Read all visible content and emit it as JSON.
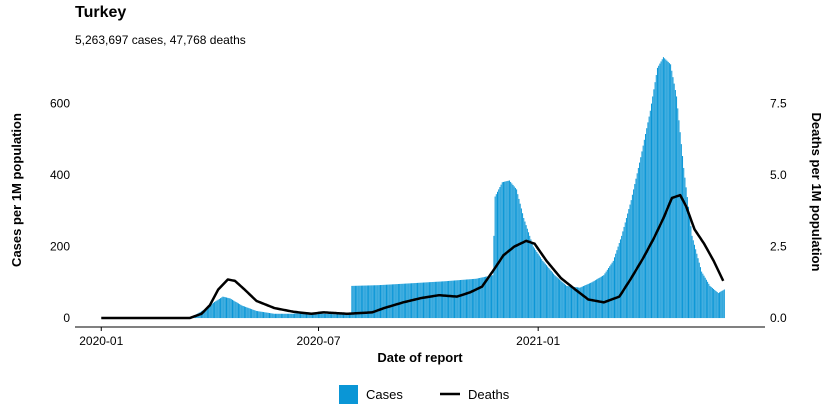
{
  "title": "Turkey",
  "subtitle": "5,263,697 cases, 47,768 deaths",
  "colors": {
    "cases": "#0a96d6",
    "deaths": "#000000"
  },
  "chart_data": {
    "type": "bar",
    "x_axis": {
      "label": "Date of report",
      "range": [
        "2019-12-10",
        "2021-07-10"
      ],
      "ticks": [
        {
          "date": "2020-01-01",
          "label": "2020-01"
        },
        {
          "date": "2020-07-01",
          "label": "2020-07"
        },
        {
          "date": "2021-01-01",
          "label": "2021-01"
        }
      ]
    },
    "y_left": {
      "label": "Cases per 1M population",
      "range": [
        -25,
        750
      ],
      "ticks": [
        0,
        200,
        400,
        600
      ]
    },
    "y_right": {
      "label": "Deaths per 1M population",
      "range": [
        -0.3125,
        9.375
      ],
      "ticks": [
        "0.0",
        "2.5",
        "5.0",
        "7.5"
      ]
    },
    "legend": {
      "position": "bottom"
    },
    "series": [
      {
        "name": "Cases",
        "type": "bar",
        "axis": "left",
        "points": [
          [
            "2020-01-01",
            0
          ],
          [
            "2020-03-10",
            0
          ],
          [
            "2020-03-18",
            5
          ],
          [
            "2020-03-28",
            25
          ],
          [
            "2020-04-05",
            45
          ],
          [
            "2020-04-12",
            60
          ],
          [
            "2020-04-18",
            55
          ],
          [
            "2020-04-28",
            35
          ],
          [
            "2020-05-10",
            20
          ],
          [
            "2020-05-25",
            12
          ],
          [
            "2020-06-10",
            12
          ],
          [
            "2020-06-20",
            17
          ],
          [
            "2020-07-05",
            12
          ],
          [
            "2020-07-20",
            10
          ],
          [
            "2020-07-28",
            10
          ],
          [
            "2020-07-29",
            90
          ],
          [
            "2020-08-20",
            92
          ],
          [
            "2020-09-15",
            97
          ],
          [
            "2020-10-15",
            103
          ],
          [
            "2020-11-10",
            110
          ],
          [
            "2020-11-24",
            120
          ],
          [
            "2020-11-26",
            340
          ],
          [
            "2020-12-02",
            380
          ],
          [
            "2020-12-08",
            385
          ],
          [
            "2020-12-14",
            360
          ],
          [
            "2020-12-20",
            280
          ],
          [
            "2020-12-28",
            200
          ],
          [
            "2021-01-05",
            160
          ],
          [
            "2021-01-15",
            120
          ],
          [
            "2021-01-25",
            90
          ],
          [
            "2021-02-05",
            85
          ],
          [
            "2021-02-15",
            100
          ],
          [
            "2021-02-25",
            120
          ],
          [
            "2021-03-05",
            160
          ],
          [
            "2021-03-12",
            230
          ],
          [
            "2021-03-20",
            330
          ],
          [
            "2021-03-28",
            450
          ],
          [
            "2021-04-05",
            580
          ],
          [
            "2021-04-11",
            700
          ],
          [
            "2021-04-16",
            730
          ],
          [
            "2021-04-22",
            710
          ],
          [
            "2021-04-27",
            620
          ],
          [
            "2021-05-03",
            420
          ],
          [
            "2021-05-10",
            230
          ],
          [
            "2021-05-18",
            130
          ],
          [
            "2021-05-25",
            90
          ],
          [
            "2021-06-01",
            70
          ],
          [
            "2021-06-06",
            80
          ]
        ]
      },
      {
        "name": "Deaths",
        "type": "line",
        "axis": "right",
        "points": [
          [
            "2020-01-01",
            0
          ],
          [
            "2020-03-15",
            0
          ],
          [
            "2020-03-25",
            0.15
          ],
          [
            "2020-04-01",
            0.45
          ],
          [
            "2020-04-08",
            1.0
          ],
          [
            "2020-04-16",
            1.35
          ],
          [
            "2020-04-22",
            1.3
          ],
          [
            "2020-04-30",
            1.0
          ],
          [
            "2020-05-10",
            0.6
          ],
          [
            "2020-05-25",
            0.35
          ],
          [
            "2020-06-10",
            0.22
          ],
          [
            "2020-06-25",
            0.15
          ],
          [
            "2020-07-05",
            0.2
          ],
          [
            "2020-07-25",
            0.15
          ],
          [
            "2020-08-15",
            0.2
          ],
          [
            "2020-08-25",
            0.35
          ],
          [
            "2020-09-10",
            0.55
          ],
          [
            "2020-09-25",
            0.7
          ],
          [
            "2020-10-10",
            0.8
          ],
          [
            "2020-10-25",
            0.75
          ],
          [
            "2020-11-05",
            0.9
          ],
          [
            "2020-11-15",
            1.1
          ],
          [
            "2020-11-25",
            1.7
          ],
          [
            "2020-12-03",
            2.2
          ],
          [
            "2020-12-12",
            2.5
          ],
          [
            "2020-12-22",
            2.7
          ],
          [
            "2020-12-29",
            2.6
          ],
          [
            "2021-01-08",
            2.0
          ],
          [
            "2021-01-20",
            1.4
          ],
          [
            "2021-02-01",
            1.0
          ],
          [
            "2021-02-12",
            0.65
          ],
          [
            "2021-02-25",
            0.55
          ],
          [
            "2021-03-10",
            0.75
          ],
          [
            "2021-03-20",
            1.4
          ],
          [
            "2021-03-30",
            2.1
          ],
          [
            "2021-04-08",
            2.8
          ],
          [
            "2021-04-16",
            3.5
          ],
          [
            "2021-04-23",
            4.2
          ],
          [
            "2021-04-30",
            4.3
          ],
          [
            "2021-05-05",
            3.9
          ],
          [
            "2021-05-12",
            3.1
          ],
          [
            "2021-05-20",
            2.6
          ],
          [
            "2021-05-28",
            2.0
          ],
          [
            "2021-06-05",
            1.3
          ]
        ]
      }
    ]
  }
}
